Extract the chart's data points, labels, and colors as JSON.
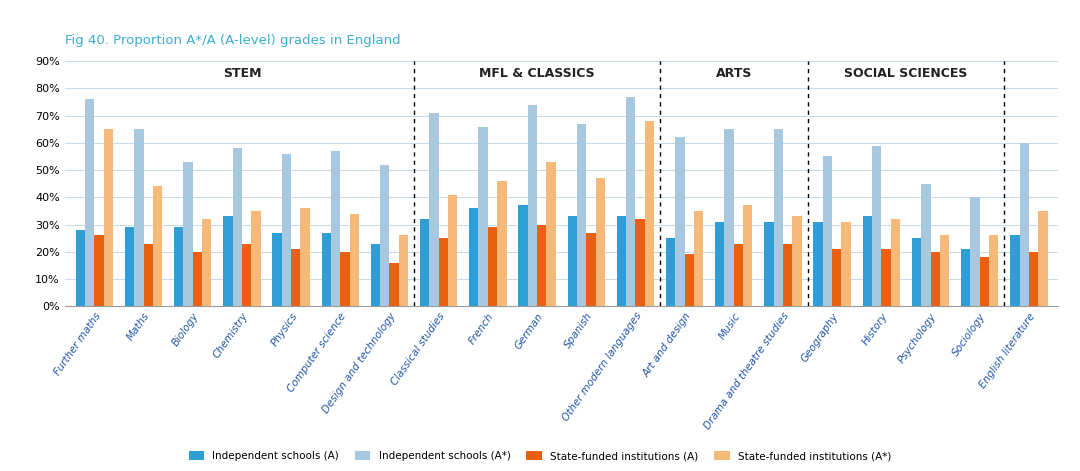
{
  "title": "Fig 40. Proportion A*/A (A-level) grades in England",
  "categories": [
    "Further maths",
    "Maths",
    "Biology",
    "Chemistry",
    "Physics",
    "Computer science",
    "Design and technology",
    "Classical studies",
    "French",
    "German",
    "Spanish",
    "Other modern languages",
    "Art and design",
    "Music",
    "Drama and theatre studies",
    "Geography",
    "History",
    "Psychology",
    "Sociology",
    "English literature"
  ],
  "indep_A": [
    28,
    29,
    29,
    33,
    27,
    27,
    23,
    32,
    36,
    37,
    33,
    33,
    25,
    31,
    31,
    31,
    33,
    25,
    21,
    26
  ],
  "indep_Astar": [
    76,
    65,
    53,
    58,
    56,
    57,
    52,
    71,
    66,
    74,
    67,
    77,
    62,
    65,
    65,
    55,
    59,
    45,
    40,
    60
  ],
  "state_A": [
    26,
    23,
    20,
    23,
    21,
    20,
    16,
    25,
    29,
    30,
    27,
    32,
    19,
    23,
    23,
    21,
    21,
    20,
    18,
    20
  ],
  "state_Astar": [
    65,
    44,
    32,
    35,
    36,
    34,
    26,
    41,
    46,
    53,
    47,
    68,
    35,
    37,
    33,
    31,
    32,
    26,
    26,
    35
  ],
  "color_indep_A": "#2E9ED4",
  "color_indep_Astar": "#A8C8E0",
  "color_state_A": "#E86010",
  "color_state_Astar": "#F5B97A",
  "dividers_after": [
    6,
    11,
    14,
    18
  ],
  "group_info": [
    {
      "label": "STEM",
      "start": 0,
      "end": 6
    },
    {
      "label": "MFL & CLASSICS",
      "start": 7,
      "end": 11
    },
    {
      "label": "ARTS",
      "start": 12,
      "end": 14
    },
    {
      "label": "SOCIAL SCIENCES",
      "start": 15,
      "end": 18
    }
  ],
  "ylim": [
    0,
    90
  ],
  "yticks": [
    0,
    10,
    20,
    30,
    40,
    50,
    60,
    70,
    80,
    90
  ],
  "background_color": "#ffffff",
  "title_color": "#3BADD4",
  "legend_labels": [
    "Independent schools (A)",
    "Independent schools (A*)",
    "State-funded institutions (A)",
    "State-funded institutions (A*)"
  ]
}
